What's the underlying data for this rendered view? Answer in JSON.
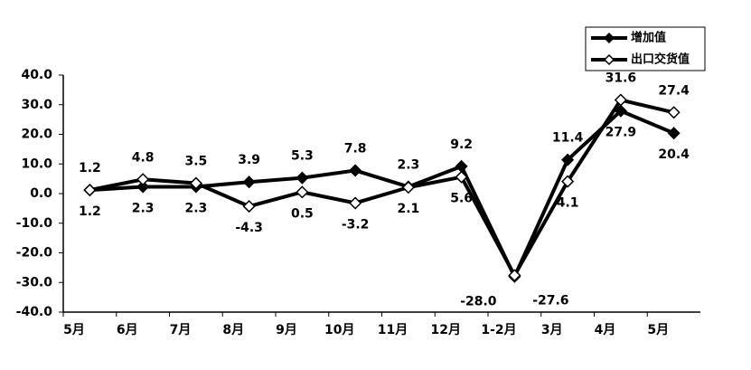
{
  "chart_data": {
    "type": "line",
    "categories": [
      "5月",
      "6月",
      "7月",
      "8月",
      "9月",
      "10月",
      "11月",
      "12月",
      "1-2月",
      "3月",
      "4月",
      "5月"
    ],
    "series": [
      {
        "name": "增加值",
        "color": "#000000",
        "marker": "filled-diamond",
        "values": [
          1.2,
          2.3,
          2.3,
          3.9,
          5.3,
          7.8,
          2.3,
          9.2,
          -28.0,
          11.4,
          27.9,
          20.4
        ],
        "value_labels": [
          "1.2",
          "2.3",
          "2.3",
          "3.9",
          "5.3",
          "7.8",
          "2.3",
          "9.2",
          "-28.0",
          "11.4",
          "27.9",
          "20.4"
        ]
      },
      {
        "name": "出口交货值",
        "color": "#000000",
        "marker": "open-diamond",
        "values": [
          1.2,
          4.8,
          3.5,
          -4.3,
          0.5,
          -3.2,
          2.1,
          5.6,
          -27.6,
          4.1,
          31.6,
          27.4
        ],
        "value_labels": [
          "1.2",
          "4.8",
          "3.5",
          "-4.3",
          "0.5",
          "-3.2",
          "2.1",
          "5.6",
          "-27.6",
          "4.1",
          "31.6",
          "27.4"
        ]
      }
    ],
    "ylim": [
      -40,
      40
    ],
    "yticks": [
      {
        "value": -40,
        "label": "-40.0"
      },
      {
        "value": -30,
        "label": "-30.0"
      },
      {
        "value": -20,
        "label": "-20.0"
      },
      {
        "value": -10,
        "label": "-10.0"
      },
      {
        "value": 0,
        "label": "0.0"
      },
      {
        "value": 10,
        "label": "10.0"
      },
      {
        "value": 20,
        "label": "20.0"
      },
      {
        "value": 30,
        "label": "30.0"
      },
      {
        "value": 40,
        "label": "40.0"
      }
    ],
    "grid": false,
    "legend": "top-right"
  }
}
